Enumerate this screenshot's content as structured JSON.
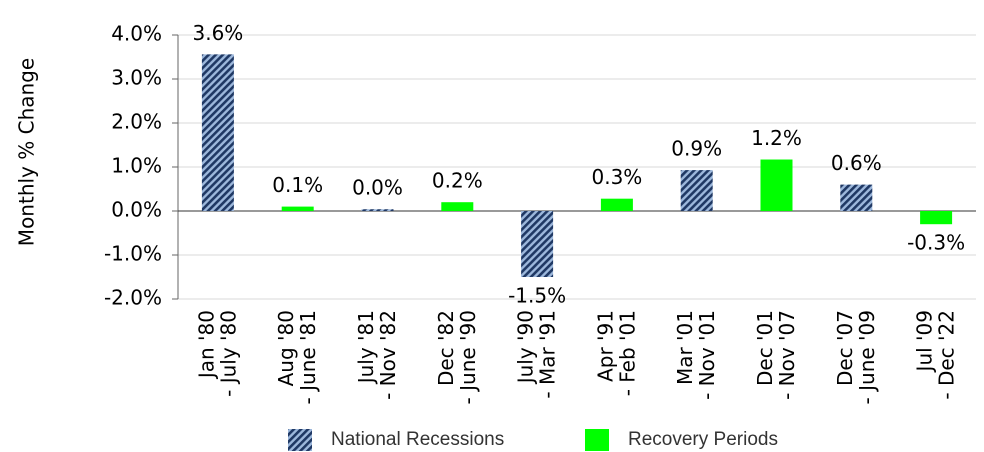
{
  "chart_data": {
    "type": "bar",
    "y_label": "Monthly % Change",
    "categories": [
      [
        "Jan '80",
        "- July '80"
      ],
      [
        "Aug '80",
        "- June '81"
      ],
      [
        "July '81",
        "- Nov '82"
      ],
      [
        "Dec '82",
        "- June '90"
      ],
      [
        "July '90",
        "- Mar '91"
      ],
      [
        "Apr '91",
        "- Feb '01"
      ],
      [
        "Mar '01",
        "- Nov '01"
      ],
      [
        "Dec '01",
        "- Nov '07"
      ],
      [
        "Dec '07",
        "- June '09"
      ],
      [
        "Jul '09",
        "- Dec '22"
      ]
    ],
    "series": [
      {
        "name": "National Recessions",
        "color": "#1f3864",
        "hatch": true,
        "values": [
          3.56,
          null,
          0.04,
          null,
          -1.5,
          null,
          0.93,
          null,
          0.6,
          null
        ],
        "value_labels": [
          "3.6%",
          null,
          "0.0%",
          null,
          "-1.5%",
          null,
          "0.9%",
          null,
          "0.6%",
          null
        ]
      },
      {
        "name": "Recovery Periods",
        "color": "#00ff00",
        "hatch": false,
        "values": [
          null,
          0.1,
          null,
          0.2,
          null,
          0.28,
          null,
          1.17,
          null,
          -0.3
        ],
        "value_labels": [
          null,
          "0.1%",
          null,
          "0.2%",
          null,
          "0.3%",
          null,
          "1.2%",
          null,
          "-0.3%"
        ]
      }
    ],
    "ylim": [
      -2,
      4
    ],
    "yticks": [
      {
        "value": -2,
        "label": "-2.0%"
      },
      {
        "value": -1,
        "label": "-1.0%"
      },
      {
        "value": 0,
        "label": "0.0%"
      },
      {
        "value": 1,
        "label": "1.0%"
      },
      {
        "value": 2,
        "label": "2.0%"
      },
      {
        "value": 3,
        "label": "3.0%"
      },
      {
        "value": 4,
        "label": "4.0%"
      }
    ],
    "grid": true
  }
}
